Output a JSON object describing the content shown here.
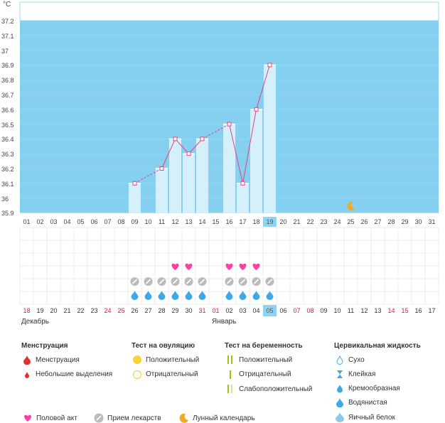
{
  "chart_data": {
    "type": "line",
    "title": "",
    "unit": "°C",
    "ylim": [
      35.9,
      37.2
    ],
    "yticks": [
      "37.2",
      "37.1",
      "37",
      "36.9",
      "36.8",
      "36.7",
      "36.6",
      "36.5",
      "36.4",
      "36.3",
      "36.2",
      "36.1",
      "36",
      "35.9"
    ],
    "x": [
      "01",
      "02",
      "03",
      "04",
      "05",
      "06",
      "07",
      "08",
      "09",
      "10",
      "11",
      "12",
      "13",
      "14",
      "15",
      "16",
      "17",
      "18",
      "19",
      "20",
      "21",
      "22",
      "23",
      "24",
      "25",
      "26",
      "27",
      "28",
      "29",
      "30",
      "31"
    ],
    "series": [
      {
        "values": [
          null,
          null,
          null,
          null,
          null,
          null,
          null,
          null,
          36.1,
          null,
          36.2,
          36.4,
          36.3,
          36.4,
          null,
          36.5,
          36.1,
          36.6,
          36.9,
          null,
          null,
          null,
          null,
          null,
          null,
          null,
          null,
          null,
          null,
          null,
          null
        ]
      }
    ],
    "selected_day": "19",
    "moon_day": "25",
    "grid": true
  },
  "calendar": {
    "dates": [
      "18",
      "19",
      "20",
      "21",
      "22",
      "23",
      "24",
      "25",
      "26",
      "27",
      "28",
      "29",
      "30",
      "31",
      "01",
      "02",
      "03",
      "04",
      "05",
      "06",
      "07",
      "08",
      "09",
      "10",
      "11",
      "12",
      "13",
      "14",
      "15",
      "16",
      "17"
    ],
    "red_dates": [
      "18",
      "24",
      "25",
      "31",
      "01",
      "07",
      "08",
      "14",
      "15"
    ],
    "selected_date": "05",
    "months": [
      "Декабрь",
      "Январь"
    ],
    "hearts": [
      "12",
      "13",
      "16",
      "17",
      "18"
    ],
    "pills": [
      "09",
      "10",
      "11",
      "12",
      "13",
      "14",
      "16",
      "17",
      "18",
      "19"
    ],
    "drops": [
      "09",
      "10",
      "11",
      "12",
      "13",
      "14",
      "16",
      "17",
      "18",
      "19"
    ]
  },
  "legend": {
    "groups": [
      {
        "title": "Менструация",
        "items": [
          {
            "icon": "drop-red-icon",
            "label": "Менструация"
          },
          {
            "icon": "drop-red-small-icon",
            "label": "Небольшие выделения"
          }
        ]
      },
      {
        "title": "Тест на овуляцию",
        "items": [
          {
            "icon": "circle-yellow-icon",
            "label": "Положительный"
          },
          {
            "icon": "circle-outline-yellow-icon",
            "label": "Отрицательный"
          }
        ]
      },
      {
        "title": "Тест на беременность",
        "items": [
          {
            "icon": "two-bars-green-icon",
            "label": "Положительный"
          },
          {
            "icon": "one-bar-green-icon",
            "label": "Отрицательный"
          },
          {
            "icon": "two-bars-light-icon",
            "label": "Слабоположительный"
          }
        ]
      },
      {
        "title": "Цервикальная жидкость",
        "items": [
          {
            "icon": "drop-outline-icon",
            "label": "Сухо"
          },
          {
            "icon": "hourglass-icon",
            "label": "Клейкая"
          },
          {
            "icon": "drop-half-icon",
            "label": "Кремообразная"
          },
          {
            "icon": "drop-blue-icon",
            "label": "Водянистая"
          },
          {
            "icon": "drop-large-icon",
            "label": "Яичный белок"
          }
        ]
      }
    ],
    "bottom": [
      {
        "icon": "heart-icon",
        "label": "Половой акт"
      },
      {
        "icon": "pill-icon",
        "label": "Прием лекарств"
      },
      {
        "icon": "moon-icon",
        "label": "Лунный календарь"
      }
    ],
    "colors": {
      "chart_bg": "#85d0f0",
      "bar": "#d6f0fb",
      "line": "#e8407a",
      "heart": "#ff3fa4",
      "pill": "#bbbbbb",
      "drop": "#3da9e8",
      "moon": "#f5a623",
      "red": "#cc2244"
    }
  }
}
